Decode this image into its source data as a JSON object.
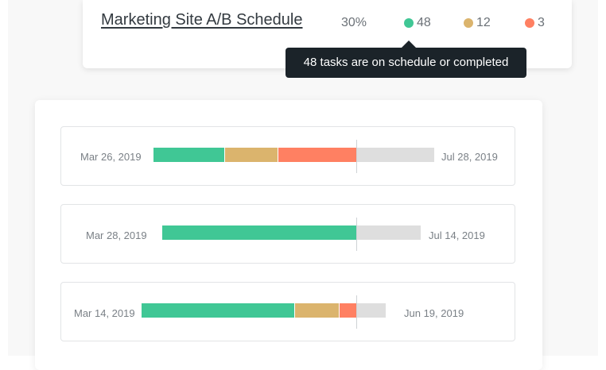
{
  "project": {
    "title": "Marketing Site A/B Schedule",
    "percent": "30%",
    "on_schedule_count": "48",
    "at_risk_count": "12",
    "late_count": "3"
  },
  "tooltip": {
    "text": "48 tasks are on schedule or completed"
  },
  "colors": {
    "on_schedule": "#40c795",
    "at_risk": "#dbb46d",
    "late": "#ff8062",
    "remaining": "#dedede"
  },
  "timelines": [
    {
      "start_date": "Mar 26, 2019",
      "end_date": "Jul 28, 2019",
      "fractions": {
        "green": 0.252,
        "yellow": 0.19,
        "red": 0.28,
        "gray": 0.278
      }
    },
    {
      "start_date": "Mar 28,  2019",
      "end_date": "Jul 14, 2019",
      "fractions": {
        "green": 0.75,
        "gray": 0.25
      }
    },
    {
      "start_date": "Mar 14, 2019",
      "end_date": "Jun 19, 2019",
      "fractions": {
        "green": 0.627,
        "yellow": 0.182,
        "red": 0.072,
        "gray": 0.119
      }
    }
  ]
}
